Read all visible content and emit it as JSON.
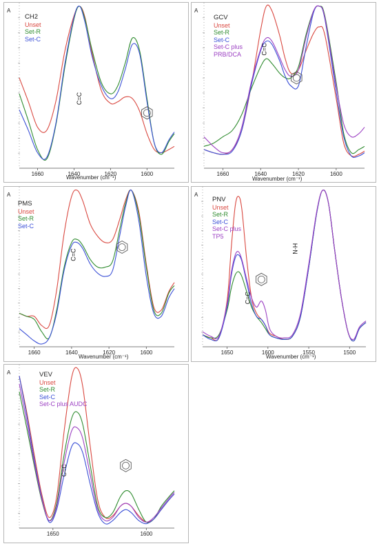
{
  "chart_data": [
    {
      "type": "line",
      "title": "CH2",
      "ylabel": "A",
      "xlabel": "Wavenumber (cm⁻¹)",
      "xlim": [
        1670,
        1585
      ],
      "ylim": [
        0,
        1
      ],
      "xticks": [
        1660,
        1640,
        1620,
        1600
      ],
      "annotations": [
        "C=C",
        "benzene-ring"
      ],
      "series": [
        {
          "name": "Unset",
          "color": "#d9473f",
          "x": [
            1670,
            1665,
            1660,
            1655,
            1650,
            1645,
            1640,
            1637,
            1634,
            1630,
            1625,
            1620,
            1616,
            1612,
            1608,
            1604,
            1600,
            1596,
            1592,
            1588,
            1585
          ],
          "y": [
            0.55,
            0.4,
            0.24,
            0.22,
            0.4,
            0.72,
            0.94,
            1.0,
            0.93,
            0.7,
            0.47,
            0.39,
            0.4,
            0.43,
            0.42,
            0.34,
            0.2,
            0.1,
            0.08,
            0.1,
            0.12
          ]
        },
        {
          "name": "Set-R",
          "color": "#2e8b2e",
          "x": [
            1670,
            1665,
            1660,
            1655,
            1650,
            1645,
            1640,
            1637,
            1634,
            1630,
            1625,
            1620,
            1616,
            1612,
            1608,
            1604,
            1600,
            1596,
            1592,
            1588,
            1585
          ],
          "y": [
            0.45,
            0.28,
            0.1,
            0.04,
            0.25,
            0.62,
            0.92,
            1.0,
            0.92,
            0.72,
            0.52,
            0.45,
            0.5,
            0.64,
            0.8,
            0.72,
            0.42,
            0.14,
            0.07,
            0.15,
            0.2
          ]
        },
        {
          "name": "Set-C",
          "color": "#3a4fd6",
          "x": [
            1670,
            1665,
            1660,
            1655,
            1650,
            1645,
            1640,
            1637,
            1634,
            1630,
            1625,
            1620,
            1616,
            1612,
            1608,
            1604,
            1600,
            1596,
            1592,
            1588,
            1585
          ],
          "y": [
            0.35,
            0.22,
            0.08,
            0.05,
            0.26,
            0.64,
            0.93,
            1.0,
            0.9,
            0.68,
            0.5,
            0.42,
            0.46,
            0.6,
            0.76,
            0.7,
            0.4,
            0.14,
            0.08,
            0.16,
            0.21
          ]
        }
      ]
    },
    {
      "type": "line",
      "title": "GCV",
      "ylabel": "A",
      "xlabel": "Wavenumber (cm⁻¹)",
      "xlim": [
        1670,
        1585
      ],
      "ylim": [
        0,
        1
      ],
      "xticks": [
        1660,
        1640,
        1620,
        1600
      ],
      "annotations": [
        "C=C",
        "benzene-ring"
      ],
      "series": [
        {
          "name": "Unset",
          "color": "#d9473f",
          "x": [
            1670,
            1665,
            1660,
            1655,
            1650,
            1645,
            1640,
            1637,
            1634,
            1630,
            1627,
            1624,
            1620,
            1616,
            1612,
            1609,
            1606,
            1600,
            1596,
            1592,
            1588,
            1585
          ],
          "y": [
            0.1,
            0.08,
            0.07,
            0.1,
            0.22,
            0.5,
            0.85,
            1.0,
            0.97,
            0.82,
            0.67,
            0.58,
            0.6,
            0.72,
            0.83,
            0.87,
            0.82,
            0.42,
            0.14,
            0.06,
            0.07,
            0.09
          ]
        },
        {
          "name": "Set-R",
          "color": "#2e8b2e",
          "x": [
            1670,
            1665,
            1660,
            1655,
            1650,
            1645,
            1640,
            1637,
            1634,
            1630,
            1627,
            1624,
            1620,
            1616,
            1612,
            1609,
            1606,
            1600,
            1596,
            1592,
            1588,
            1585
          ],
          "y": [
            0.12,
            0.14,
            0.18,
            0.22,
            0.32,
            0.48,
            0.62,
            0.67,
            0.64,
            0.58,
            0.55,
            0.55,
            0.62,
            0.82,
            0.97,
            1.0,
            0.94,
            0.52,
            0.2,
            0.08,
            0.1,
            0.12
          ]
        },
        {
          "name": "Set-C",
          "color": "#3a4fd6",
          "x": [
            1670,
            1665,
            1660,
            1655,
            1650,
            1645,
            1640,
            1637,
            1634,
            1630,
            1627,
            1624,
            1620,
            1616,
            1612,
            1609,
            1606,
            1600,
            1596,
            1592,
            1588,
            1585
          ],
          "y": [
            0.1,
            0.08,
            0.07,
            0.09,
            0.22,
            0.5,
            0.72,
            0.78,
            0.76,
            0.66,
            0.56,
            0.5,
            0.5,
            0.74,
            0.96,
            1.0,
            0.92,
            0.46,
            0.18,
            0.06,
            0.06,
            0.08
          ]
        },
        {
          "name": "Set-C plus PRB/DCA",
          "color": "#9b3fc2",
          "x": [
            1670,
            1665,
            1660,
            1655,
            1650,
            1645,
            1640,
            1637,
            1634,
            1630,
            1627,
            1624,
            1620,
            1616,
            1612,
            1609,
            1606,
            1600,
            1596,
            1592,
            1588,
            1585
          ],
          "y": [
            0.18,
            0.12,
            0.08,
            0.1,
            0.24,
            0.52,
            0.73,
            0.8,
            0.78,
            0.68,
            0.6,
            0.56,
            0.6,
            0.8,
            0.97,
            1.0,
            0.93,
            0.5,
            0.26,
            0.18,
            0.2,
            0.24
          ]
        }
      ]
    },
    {
      "type": "line",
      "title": "PMS",
      "ylabel": "A",
      "xlabel": "Wavenumber (cm⁻¹)",
      "xlim": [
        1668,
        1585
      ],
      "ylim": [
        0,
        1
      ],
      "xticks": [
        1660,
        1640,
        1620,
        1600
      ],
      "annotations": [
        "C=C",
        "benzene-ring"
      ],
      "series": [
        {
          "name": "Unset",
          "color": "#d9473f",
          "x": [
            1668,
            1664,
            1660,
            1656,
            1652,
            1648,
            1644,
            1640,
            1637,
            1634,
            1630,
            1626,
            1622,
            1618,
            1614,
            1611,
            1608,
            1604,
            1600,
            1596,
            1592,
            1588,
            1585
          ],
          "y": [
            0.2,
            0.18,
            0.18,
            0.12,
            0.12,
            0.35,
            0.72,
            0.96,
            1.0,
            0.93,
            0.78,
            0.7,
            0.66,
            0.68,
            0.82,
            0.94,
            1.0,
            0.86,
            0.52,
            0.24,
            0.22,
            0.34,
            0.4
          ]
        },
        {
          "name": "Set-R",
          "color": "#2e8b2e",
          "x": [
            1668,
            1664,
            1660,
            1656,
            1652,
            1648,
            1644,
            1640,
            1637,
            1634,
            1630,
            1626,
            1622,
            1618,
            1614,
            1611,
            1608,
            1604,
            1600,
            1596,
            1592,
            1588,
            1585
          ],
          "y": [
            0.2,
            0.18,
            0.16,
            0.08,
            0.04,
            0.22,
            0.5,
            0.66,
            0.68,
            0.64,
            0.55,
            0.5,
            0.5,
            0.54,
            0.76,
            0.92,
            1.0,
            0.84,
            0.5,
            0.22,
            0.2,
            0.33,
            0.38
          ]
        },
        {
          "name": "Set-C",
          "color": "#3a4fd6",
          "x": [
            1668,
            1664,
            1660,
            1656,
            1652,
            1648,
            1644,
            1640,
            1637,
            1634,
            1630,
            1626,
            1622,
            1618,
            1614,
            1611,
            1608,
            1604,
            1600,
            1596,
            1592,
            1588,
            1585
          ],
          "y": [
            0.1,
            0.06,
            0.02,
            0.0,
            0.04,
            0.2,
            0.48,
            0.64,
            0.66,
            0.62,
            0.52,
            0.46,
            0.44,
            0.48,
            0.72,
            0.9,
            1.0,
            0.8,
            0.44,
            0.2,
            0.18,
            0.3,
            0.36
          ]
        }
      ]
    },
    {
      "type": "line",
      "title": "PNV",
      "ylabel": "A",
      "xlabel": "Wavenumber (cm⁻¹)",
      "xlim": [
        1680,
        1480
      ],
      "ylim": [
        0,
        1
      ],
      "xticks": [
        1650,
        1600,
        1550,
        1500
      ],
      "annotations": [
        "C=C",
        "N-H",
        "benzene-ring"
      ],
      "series": [
        {
          "name": "Unset",
          "color": "#d9473f",
          "x": [
            1680,
            1670,
            1660,
            1650,
            1645,
            1640,
            1636,
            1632,
            1626,
            1620,
            1614,
            1608,
            1603,
            1598,
            1590,
            1580,
            1570,
            1560,
            1550,
            1540,
            1533,
            1526,
            1518,
            1510,
            1502,
            1495,
            1488,
            1480
          ],
          "y": [
            0.06,
            0.04,
            0.04,
            0.28,
            0.62,
            0.9,
            0.96,
            0.88,
            0.55,
            0.3,
            0.2,
            0.16,
            0.12,
            0.07,
            0.05,
            0.03,
            0.05,
            0.18,
            0.5,
            0.86,
            1.0,
            0.92,
            0.6,
            0.3,
            0.08,
            0.02,
            0.1,
            0.14
          ]
        },
        {
          "name": "Set-R",
          "color": "#2e8b2e",
          "x": [
            1680,
            1670,
            1660,
            1650,
            1645,
            1640,
            1636,
            1632,
            1626,
            1620,
            1614,
            1608,
            1603,
            1598,
            1590,
            1580,
            1570,
            1560,
            1550,
            1540,
            1533,
            1526,
            1518,
            1510,
            1502,
            1495,
            1488,
            1480
          ],
          "y": [
            0.06,
            0.04,
            0.06,
            0.22,
            0.36,
            0.45,
            0.47,
            0.44,
            0.34,
            0.24,
            0.18,
            0.14,
            0.1,
            0.06,
            0.04,
            0.03,
            0.05,
            0.18,
            0.5,
            0.86,
            1.0,
            0.92,
            0.6,
            0.3,
            0.08,
            0.02,
            0.1,
            0.14
          ]
        },
        {
          "name": "Set-C",
          "color": "#3a4fd6",
          "x": [
            1680,
            1670,
            1660,
            1650,
            1645,
            1640,
            1636,
            1632,
            1626,
            1620,
            1614,
            1608,
            1603,
            1598,
            1590,
            1580,
            1570,
            1560,
            1550,
            1540,
            1533,
            1526,
            1518,
            1510,
            1502,
            1495,
            1488,
            1480
          ],
          "y": [
            0.06,
            0.03,
            0.04,
            0.24,
            0.44,
            0.56,
            0.58,
            0.54,
            0.4,
            0.26,
            0.18,
            0.16,
            0.12,
            0.06,
            0.04,
            0.03,
            0.05,
            0.18,
            0.5,
            0.86,
            1.0,
            0.92,
            0.6,
            0.3,
            0.08,
            0.02,
            0.1,
            0.14
          ]
        },
        {
          "name": "Set-C plus TP5",
          "color": "#9b3fc2",
          "x": [
            1680,
            1670,
            1660,
            1650,
            1645,
            1640,
            1636,
            1632,
            1626,
            1620,
            1614,
            1608,
            1603,
            1598,
            1590,
            1580,
            1570,
            1560,
            1550,
            1540,
            1533,
            1526,
            1518,
            1510,
            1502,
            1495,
            1488,
            1480
          ],
          "y": [
            0.08,
            0.05,
            0.05,
            0.26,
            0.46,
            0.58,
            0.6,
            0.55,
            0.42,
            0.3,
            0.24,
            0.28,
            0.22,
            0.1,
            0.05,
            0.04,
            0.06,
            0.2,
            0.52,
            0.87,
            1.0,
            0.92,
            0.6,
            0.3,
            0.08,
            0.03,
            0.11,
            0.15
          ]
        }
      ]
    },
    {
      "type": "line",
      "title": "VEV",
      "ylabel": "A",
      "xlabel": "",
      "xlim": [
        1668,
        1585
      ],
      "ylim": [
        0,
        1
      ],
      "xticks": [
        1650,
        1600
      ],
      "annotations": [
        "C=C",
        "benzene-ring"
      ],
      "series": [
        {
          "name": "Unset",
          "color": "#d9473f",
          "x": [
            1668,
            1664,
            1660,
            1656,
            1652,
            1648,
            1644,
            1640,
            1637,
            1634,
            1630,
            1626,
            1622,
            1618,
            1614,
            1611,
            1608,
            1604,
            1600,
            1596,
            1592,
            1588,
            1585
          ],
          "y": [
            0.95,
            0.72,
            0.45,
            0.2,
            0.05,
            0.18,
            0.6,
            0.94,
            1.0,
            0.88,
            0.5,
            0.16,
            0.05,
            0.06,
            0.12,
            0.14,
            0.12,
            0.06,
            0.02,
            0.04,
            0.1,
            0.16,
            0.2
          ]
        },
        {
          "name": "Set-R",
          "color": "#2e8b2e",
          "x": [
            1668,
            1664,
            1660,
            1656,
            1652,
            1648,
            1644,
            1640,
            1637,
            1634,
            1630,
            1626,
            1622,
            1618,
            1614,
            1611,
            1608,
            1604,
            1600,
            1596,
            1592,
            1588,
            1585
          ],
          "y": [
            0.85,
            0.62,
            0.38,
            0.16,
            0.03,
            0.14,
            0.45,
            0.68,
            0.72,
            0.64,
            0.38,
            0.12,
            0.05,
            0.08,
            0.18,
            0.22,
            0.2,
            0.1,
            0.02,
            0.04,
            0.12,
            0.18,
            0.22
          ]
        },
        {
          "name": "Set-C",
          "color": "#3a4fd6",
          "x": [
            1668,
            1664,
            1660,
            1656,
            1652,
            1648,
            1644,
            1640,
            1637,
            1634,
            1630,
            1626,
            1622,
            1618,
            1614,
            1611,
            1608,
            1604,
            1600,
            1596,
            1592,
            1588,
            1585
          ],
          "y": [
            0.95,
            0.7,
            0.42,
            0.18,
            0.02,
            0.1,
            0.32,
            0.5,
            0.52,
            0.46,
            0.26,
            0.08,
            0.01,
            0.03,
            0.08,
            0.1,
            0.08,
            0.03,
            0.01,
            0.04,
            0.1,
            0.16,
            0.2
          ]
        },
        {
          "name": "Set-C plus AUDC",
          "color": "#9b3fc2",
          "x": [
            1668,
            1664,
            1660,
            1656,
            1652,
            1648,
            1644,
            1640,
            1637,
            1634,
            1630,
            1626,
            1622,
            1618,
            1614,
            1611,
            1608,
            1604,
            1600,
            1596,
            1592,
            1588,
            1585
          ],
          "y": [
            0.9,
            0.66,
            0.4,
            0.17,
            0.03,
            0.12,
            0.4,
            0.6,
            0.62,
            0.55,
            0.32,
            0.1,
            0.03,
            0.05,
            0.12,
            0.14,
            0.12,
            0.05,
            0.02,
            0.05,
            0.11,
            0.17,
            0.21
          ]
        }
      ]
    }
  ]
}
